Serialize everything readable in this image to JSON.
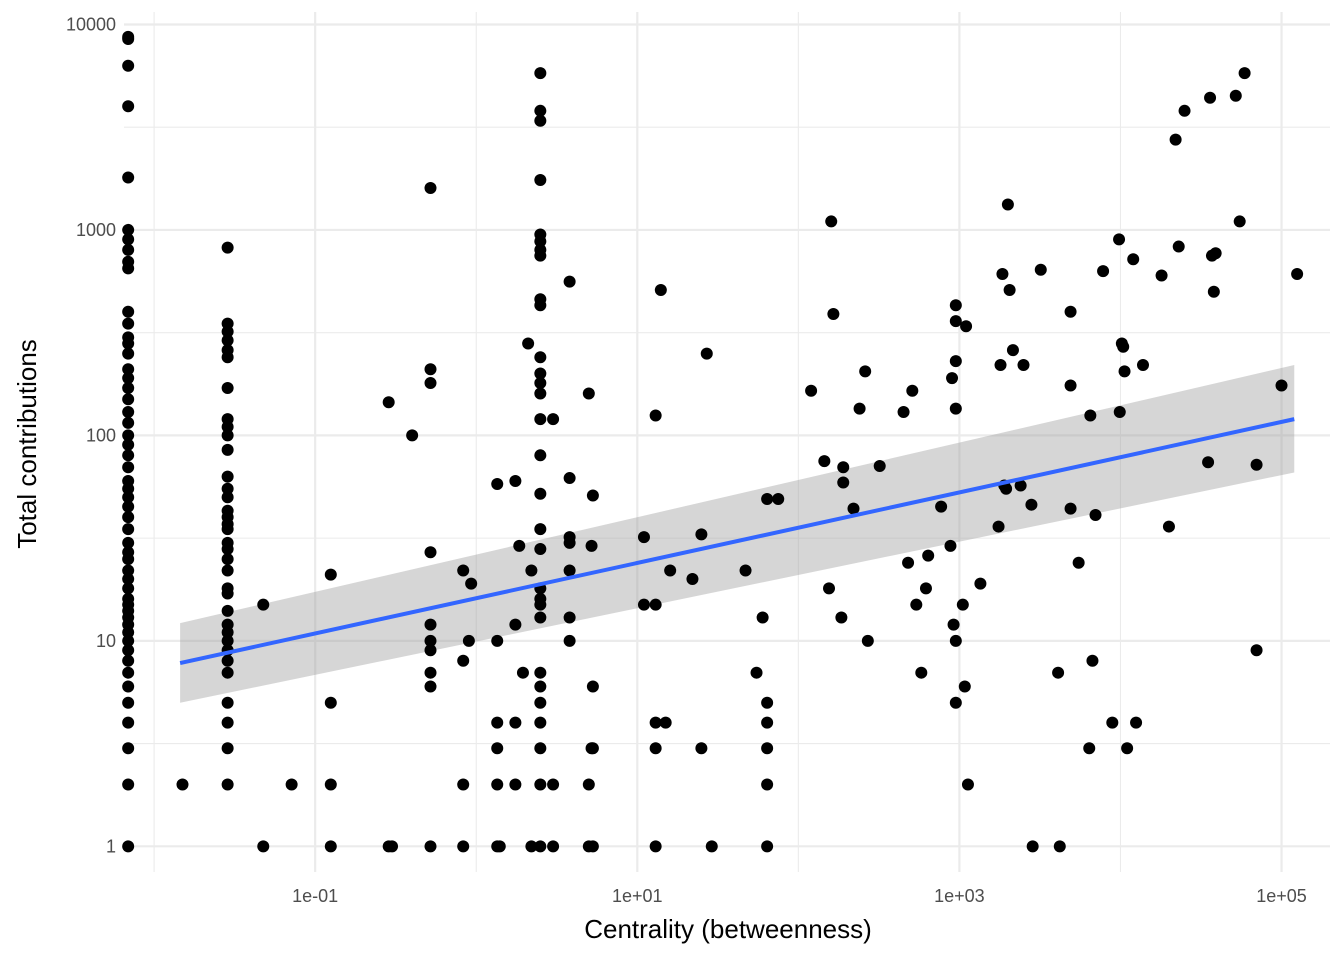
{
  "chart_data": {
    "type": "scatter",
    "xlabel": "Centrality (betweenness)",
    "ylabel": "Total contributions",
    "x_scale": "log10",
    "y_scale": "log10",
    "xlim": [
      0.0065,
      200000
    ],
    "ylim": [
      0.75,
      11500
    ],
    "grid": true,
    "x_ticks": [
      {
        "value": 0.1,
        "label": "1e-01"
      },
      {
        "value": 10,
        "label": "1e+01"
      },
      {
        "value": 1000,
        "label": "1e+03"
      },
      {
        "value": 100000,
        "label": "1e+05"
      }
    ],
    "y_ticks": [
      {
        "value": 1,
        "label": "1"
      },
      {
        "value": 10,
        "label": "10"
      },
      {
        "value": 100,
        "label": "100"
      },
      {
        "value": 1000,
        "label": "1000"
      },
      {
        "value": 10000,
        "label": "10000"
      }
    ],
    "colors": {
      "points": "#000000",
      "trend": "#3366ff",
      "ribbon": "#cccccc",
      "grid": "#ebebeb",
      "background": "#ffffff"
    },
    "trend_line": {
      "x_range": [
        0.0145,
        120000
      ],
      "y_at_start": 7.8,
      "y_at_end": 120,
      "ci_at_start": [
        5.0,
        12.2
      ],
      "ci_at_end": [
        66,
        220
      ]
    },
    "points": [
      [
        0.0069,
        8700
      ],
      [
        0.0069,
        8500
      ],
      [
        0.0069,
        6300
      ],
      [
        0.0069,
        4000
      ],
      [
        0.0069,
        1800
      ],
      [
        0.0069,
        1000
      ],
      [
        0.0069,
        900
      ],
      [
        0.0069,
        800
      ],
      [
        0.0069,
        700
      ],
      [
        0.0069,
        650
      ],
      [
        0.0069,
        400
      ],
      [
        0.0069,
        350
      ],
      [
        0.0069,
        300
      ],
      [
        0.0069,
        280
      ],
      [
        0.0069,
        250
      ],
      [
        0.0069,
        210
      ],
      [
        0.0069,
        190
      ],
      [
        0.0069,
        170
      ],
      [
        0.0069,
        150
      ],
      [
        0.0069,
        130
      ],
      [
        0.0069,
        115
      ],
      [
        0.0069,
        100
      ],
      [
        0.0069,
        90
      ],
      [
        0.0069,
        80
      ],
      [
        0.0069,
        70
      ],
      [
        0.0069,
        60
      ],
      [
        0.0069,
        55
      ],
      [
        0.0069,
        50
      ],
      [
        0.0069,
        45
      ],
      [
        0.0069,
        40
      ],
      [
        0.0069,
        35
      ],
      [
        0.0069,
        30
      ],
      [
        0.0069,
        27
      ],
      [
        0.0069,
        25
      ],
      [
        0.0069,
        22
      ],
      [
        0.0069,
        20
      ],
      [
        0.0069,
        18
      ],
      [
        0.0069,
        16
      ],
      [
        0.0069,
        15
      ],
      [
        0.0069,
        14
      ],
      [
        0.0069,
        13
      ],
      [
        0.0069,
        12
      ],
      [
        0.0069,
        11
      ],
      [
        0.0069,
        10
      ],
      [
        0.0069,
        9
      ],
      [
        0.0069,
        8
      ],
      [
        0.0069,
        7
      ],
      [
        0.0069,
        6
      ],
      [
        0.0069,
        5
      ],
      [
        0.0069,
        4
      ],
      [
        0.0069,
        3
      ],
      [
        0.0069,
        2
      ],
      [
        0.0069,
        1
      ],
      [
        0.015,
        2
      ],
      [
        0.0286,
        820
      ],
      [
        0.0286,
        350
      ],
      [
        0.0286,
        320
      ],
      [
        0.0286,
        290
      ],
      [
        0.0286,
        260
      ],
      [
        0.0286,
        240
      ],
      [
        0.0286,
        170
      ],
      [
        0.0286,
        120
      ],
      [
        0.0286,
        110
      ],
      [
        0.0286,
        100
      ],
      [
        0.0286,
        85
      ],
      [
        0.0286,
        63
      ],
      [
        0.0286,
        55
      ],
      [
        0.0286,
        50
      ],
      [
        0.0286,
        43
      ],
      [
        0.0286,
        40
      ],
      [
        0.0286,
        37
      ],
      [
        0.0286,
        35
      ],
      [
        0.0286,
        30
      ],
      [
        0.0286,
        28
      ],
      [
        0.0286,
        25
      ],
      [
        0.0286,
        22
      ],
      [
        0.0286,
        18
      ],
      [
        0.0286,
        17
      ],
      [
        0.0286,
        14
      ],
      [
        0.0286,
        12
      ],
      [
        0.0286,
        11
      ],
      [
        0.0286,
        10
      ],
      [
        0.0286,
        9
      ],
      [
        0.0286,
        8
      ],
      [
        0.0286,
        7
      ],
      [
        0.0286,
        5
      ],
      [
        0.0286,
        4
      ],
      [
        0.0286,
        3
      ],
      [
        0.0286,
        2
      ],
      [
        0.0476,
        15
      ],
      [
        0.0476,
        1
      ],
      [
        0.0714,
        2
      ],
      [
        0.125,
        21
      ],
      [
        0.125,
        5
      ],
      [
        0.125,
        2
      ],
      [
        0.125,
        1
      ],
      [
        0.286,
        145
      ],
      [
        0.286,
        1
      ],
      [
        0.3,
        1
      ],
      [
        0.4,
        100
      ],
      [
        0.52,
        1600
      ],
      [
        0.52,
        210
      ],
      [
        0.52,
        180
      ],
      [
        0.52,
        27
      ],
      [
        0.52,
        12
      ],
      [
        0.52,
        10
      ],
      [
        0.52,
        9
      ],
      [
        0.52,
        7
      ],
      [
        0.52,
        6
      ],
      [
        0.52,
        1
      ],
      [
        0.83,
        22
      ],
      [
        0.83,
        8
      ],
      [
        0.83,
        2
      ],
      [
        0.83,
        1
      ],
      [
        0.9,
        10
      ],
      [
        0.93,
        19
      ],
      [
        1.35,
        58
      ],
      [
        1.35,
        10
      ],
      [
        1.35,
        4
      ],
      [
        1.35,
        3
      ],
      [
        1.35,
        2
      ],
      [
        1.35,
        1
      ],
      [
        1.4,
        1
      ],
      [
        1.75,
        60
      ],
      [
        1.75,
        12
      ],
      [
        1.75,
        4
      ],
      [
        1.75,
        2
      ],
      [
        1.85,
        29
      ],
      [
        1.95,
        7
      ],
      [
        2.1,
        280
      ],
      [
        2.2,
        22
      ],
      [
        2.2,
        1
      ],
      [
        2.5,
        5800
      ],
      [
        2.5,
        3800
      ],
      [
        2.5,
        3400
      ],
      [
        2.5,
        1750
      ],
      [
        2.5,
        950
      ],
      [
        2.5,
        880
      ],
      [
        2.5,
        800
      ],
      [
        2.5,
        750
      ],
      [
        2.5,
        460
      ],
      [
        2.5,
        430
      ],
      [
        2.5,
        240
      ],
      [
        2.5,
        200
      ],
      [
        2.5,
        180
      ],
      [
        2.5,
        160
      ],
      [
        2.5,
        120
      ],
      [
        2.5,
        80
      ],
      [
        2.5,
        52
      ],
      [
        2.5,
        35
      ],
      [
        2.5,
        28
      ],
      [
        2.5,
        18
      ],
      [
        2.5,
        16
      ],
      [
        2.5,
        15
      ],
      [
        2.5,
        13
      ],
      [
        2.5,
        7
      ],
      [
        2.5,
        6
      ],
      [
        2.5,
        5
      ],
      [
        2.5,
        4
      ],
      [
        2.5,
        3
      ],
      [
        2.5,
        2
      ],
      [
        2.5,
        1
      ],
      [
        3.0,
        120
      ],
      [
        3.0,
        2
      ],
      [
        3.0,
        1
      ],
      [
        3.8,
        560
      ],
      [
        3.8,
        62
      ],
      [
        3.8,
        32
      ],
      [
        3.8,
        30
      ],
      [
        3.8,
        22
      ],
      [
        3.8,
        13
      ],
      [
        3.8,
        10
      ],
      [
        5.0,
        160
      ],
      [
        5.2,
        29
      ],
      [
        5.3,
        51
      ],
      [
        5.3,
        6
      ],
      [
        5.2,
        3
      ],
      [
        5.0,
        2
      ],
      [
        5.0,
        1
      ],
      [
        5.3,
        1
      ],
      [
        5.3,
        3
      ],
      [
        11,
        32
      ],
      [
        11,
        15
      ],
      [
        13,
        15
      ],
      [
        13,
        125
      ],
      [
        14,
        510
      ],
      [
        13,
        4
      ],
      [
        13,
        3
      ],
      [
        13,
        1
      ],
      [
        15,
        4
      ],
      [
        16,
        22
      ],
      [
        22,
        20
      ],
      [
        25,
        33
      ],
      [
        25,
        3
      ],
      [
        27,
        250
      ],
      [
        29,
        1
      ],
      [
        47,
        22
      ],
      [
        55,
        7
      ],
      [
        60,
        13
      ],
      [
        64,
        49
      ],
      [
        64,
        5
      ],
      [
        64,
        4
      ],
      [
        64,
        3
      ],
      [
        64,
        2
      ],
      [
        64,
        1
      ],
      [
        75,
        49
      ],
      [
        120,
        165
      ],
      [
        145,
        75
      ],
      [
        155,
        18
      ],
      [
        160,
        1100
      ],
      [
        165,
        390
      ],
      [
        185,
        13
      ],
      [
        190,
        70
      ],
      [
        190,
        59
      ],
      [
        220,
        44
      ],
      [
        240,
        135
      ],
      [
        260,
        205
      ],
      [
        270,
        10
      ],
      [
        320,
        71
      ],
      [
        450,
        130
      ],
      [
        480,
        24
      ],
      [
        510,
        165
      ],
      [
        540,
        15
      ],
      [
        580,
        7
      ],
      [
        620,
        18
      ],
      [
        640,
        26
      ],
      [
        770,
        45
      ],
      [
        880,
        29
      ],
      [
        900,
        190
      ],
      [
        920,
        12
      ],
      [
        950,
        430
      ],
      [
        950,
        360
      ],
      [
        950,
        230
      ],
      [
        950,
        135
      ],
      [
        950,
        10
      ],
      [
        950,
        5
      ],
      [
        1050,
        15
      ],
      [
        1080,
        6
      ],
      [
        1100,
        340
      ],
      [
        1130,
        2
      ],
      [
        1350,
        19
      ],
      [
        1750,
        36
      ],
      [
        1800,
        220
      ],
      [
        1850,
        610
      ],
      [
        1900,
        57
      ],
      [
        1950,
        55
      ],
      [
        2000,
        1330
      ],
      [
        2050,
        510
      ],
      [
        2150,
        260
      ],
      [
        2400,
        57
      ],
      [
        2500,
        220
      ],
      [
        2800,
        46
      ],
      [
        2850,
        1
      ],
      [
        3200,
        640
      ],
      [
        4100,
        7
      ],
      [
        4200,
        1
      ],
      [
        4900,
        400
      ],
      [
        4900,
        175
      ],
      [
        4900,
        44
      ],
      [
        5500,
        24
      ],
      [
        6400,
        3
      ],
      [
        6500,
        125
      ],
      [
        6700,
        8
      ],
      [
        7000,
        41
      ],
      [
        7800,
        630
      ],
      [
        8900,
        4
      ],
      [
        9800,
        900
      ],
      [
        9900,
        130
      ],
      [
        10200,
        280
      ],
      [
        10400,
        270
      ],
      [
        10600,
        205
      ],
      [
        11000,
        3
      ],
      [
        12000,
        720
      ],
      [
        12500,
        4
      ],
      [
        13800,
        220
      ],
      [
        18000,
        600
      ],
      [
        20000,
        36
      ],
      [
        22000,
        2750
      ],
      [
        23000,
        830
      ],
      [
        25000,
        3800
      ],
      [
        35000,
        74
      ],
      [
        36000,
        4400
      ],
      [
        37000,
        750
      ],
      [
        38000,
        500
      ],
      [
        39000,
        770
      ],
      [
        52000,
        4500
      ],
      [
        55000,
        1100
      ],
      [
        59000,
        5800
      ],
      [
        70000,
        72
      ],
      [
        70000,
        9
      ],
      [
        100000,
        175
      ],
      [
        125000,
        610
      ]
    ]
  }
}
